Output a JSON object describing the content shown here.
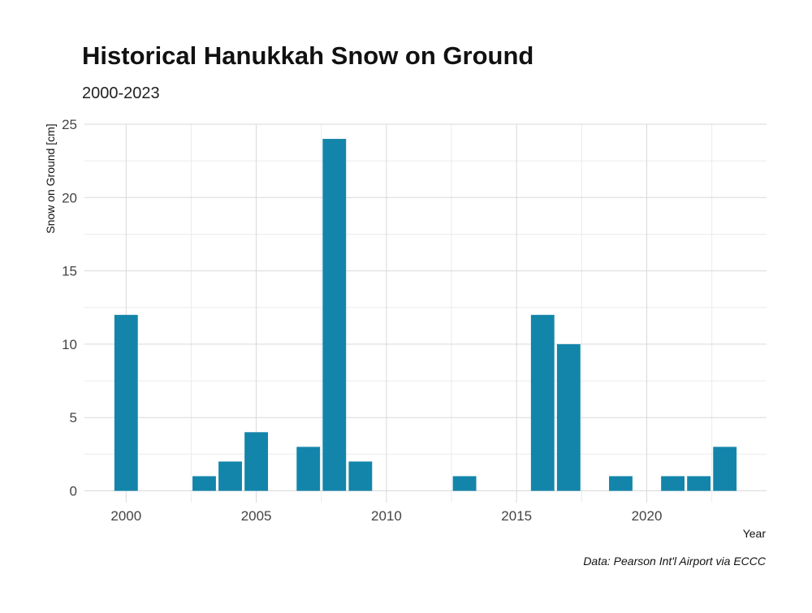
{
  "chart_data": {
    "type": "bar",
    "title": "Historical Hanukkah Snow on Ground",
    "subtitle": "2000-2023",
    "xlabel": "Year",
    "ylabel": "Snow on Ground [cm]",
    "caption": "Data: Pearson Int'l Airport via ECCC",
    "bar_color": "#1385aa",
    "xlim": [
      1998.4,
      2024.6
    ],
    "ylim": [
      -0.8,
      25
    ],
    "x_ticks": [
      2000,
      2005,
      2010,
      2015,
      2020
    ],
    "y_ticks": [
      0,
      5,
      10,
      15,
      20,
      25
    ],
    "x": [
      2000,
      2001,
      2002,
      2003,
      2004,
      2005,
      2006,
      2007,
      2008,
      2009,
      2010,
      2011,
      2012,
      2013,
      2014,
      2015,
      2016,
      2017,
      2018,
      2019,
      2020,
      2021,
      2022,
      2023
    ],
    "values": [
      12,
      0,
      0,
      1,
      2,
      4,
      0,
      3,
      24,
      2,
      0,
      0,
      0,
      1,
      0,
      0,
      12,
      10,
      0,
      1,
      0,
      1,
      1,
      3
    ],
    "grid": true
  }
}
